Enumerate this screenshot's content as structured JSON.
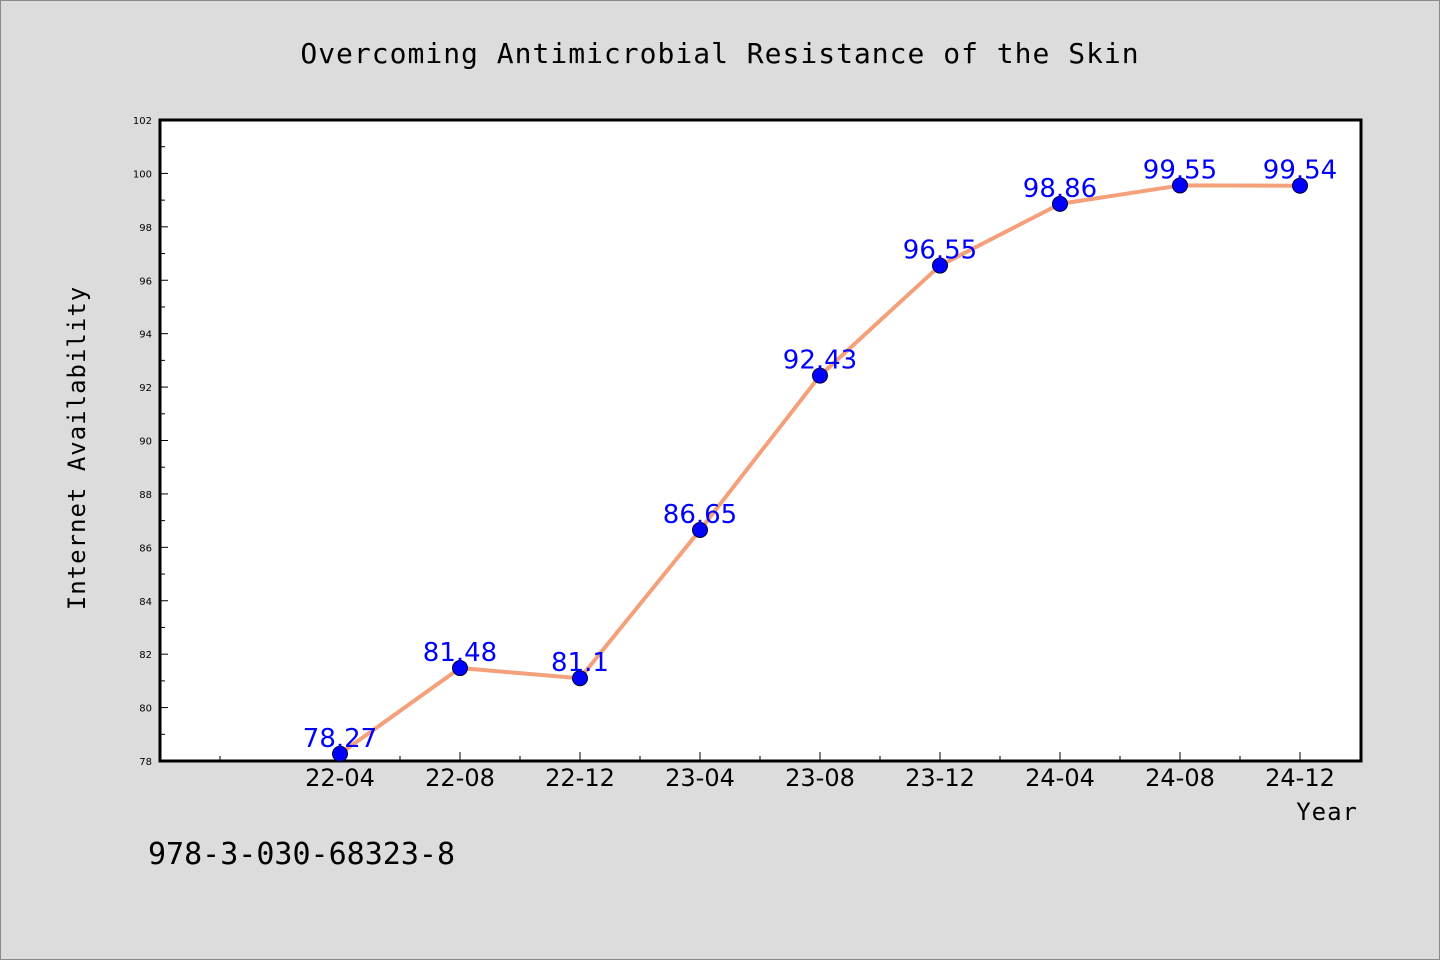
{
  "chart_data": {
    "type": "line",
    "title": "Overcoming Antimicrobial Resistance of the Skin",
    "xlabel": "Year",
    "ylabel": "Internet Availability",
    "x": [
      "22-04",
      "22-08",
      "22-12",
      "23-04",
      "23-08",
      "23-12",
      "24-04",
      "24-08",
      "24-12"
    ],
    "series": [
      {
        "values": [
          78.27,
          81.48,
          81.1,
          86.65,
          92.43,
          96.55,
          98.86,
          99.55,
          99.54
        ],
        "labels": [
          "78.27",
          "81.48",
          "81.1",
          "86.65",
          "92.43",
          "96.55",
          "98.86",
          "99.55",
          "99.54"
        ]
      }
    ],
    "ylim": [
      78,
      102
    ],
    "yticks": [
      "78",
      "80",
      "82",
      "84",
      "86",
      "88",
      "90",
      "92",
      "94",
      "96",
      "98",
      "100",
      "102"
    ],
    "grid": false,
    "colors": {
      "line": "#f4a07a",
      "marker": "#0000ff",
      "label": "#0000ff",
      "background": "#dcdcdc",
      "plot_area": "#ffffff"
    }
  },
  "footer": {
    "code": "978-3-030-68323-8"
  }
}
